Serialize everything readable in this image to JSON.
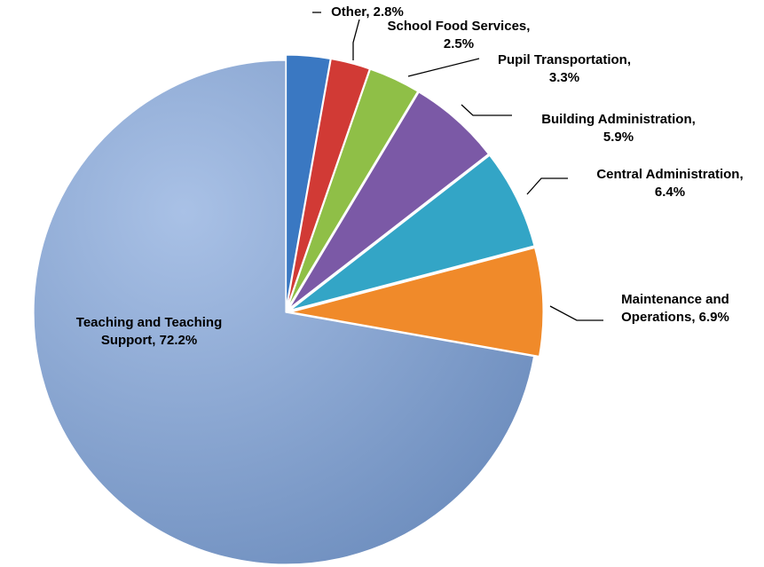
{
  "chart_data": {
    "type": "pie",
    "title": "",
    "start_angle_deg": 0,
    "direction": "clockwise",
    "slices": [
      {
        "name": "Other",
        "value": 2.8,
        "label_line1": "Other, 2.8%",
        "label_line2": "",
        "color": "#3a78c2"
      },
      {
        "name": "School Food Services",
        "value": 2.5,
        "label_line1": "School Food Services,",
        "label_line2": "2.5%",
        "color": "#d13a35"
      },
      {
        "name": "Pupil Transportation",
        "value": 3.3,
        "label_line1": "Pupil Transportation,",
        "label_line2": "3.3%",
        "color": "#8fbf47"
      },
      {
        "name": "Building Administration",
        "value": 5.9,
        "label_line1": "Building Administration,",
        "label_line2": "5.9%",
        "color": "#7b59a6"
      },
      {
        "name": "Central Administration",
        "value": 6.4,
        "label_line1": "Central Administration,",
        "label_line2": "6.4%",
        "color": "#33a5c6"
      },
      {
        "name": "Maintenance and Operations",
        "value": 6.9,
        "label_line1": "Maintenance and",
        "label_line2": "Operations, 6.9%",
        "color": "#f08a2a"
      },
      {
        "name": "Teaching and Teaching Support",
        "value": 72.2,
        "label_line1": "Teaching and Teaching",
        "label_line2": "Support, 72.2%",
        "color": "#8eabd8"
      }
    ]
  }
}
